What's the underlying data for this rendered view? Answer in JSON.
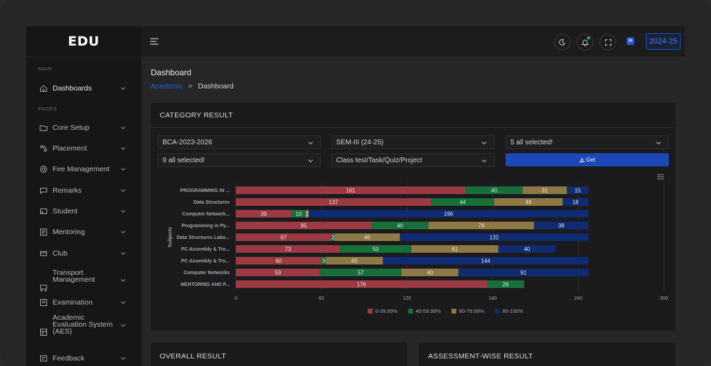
{
  "app": {
    "logo": "EDU",
    "academic_year": "2024-25",
    "profile_initials": "PI"
  },
  "sidebar": {
    "section_main": "MAIN",
    "section_pages": "PAGES",
    "items": [
      {
        "label": "Dashboards",
        "icon": "home-icon"
      },
      {
        "label": "Core Setup",
        "icon": "folder-icon"
      },
      {
        "label": "Placement",
        "icon": "placement-icon"
      },
      {
        "label": "Fee Management",
        "icon": "fee-icon"
      },
      {
        "label": "Remarks",
        "icon": "remarks-icon"
      },
      {
        "label": "Student",
        "icon": "student-icon"
      },
      {
        "label": "Mentoring",
        "icon": "mentoring-icon"
      },
      {
        "label": "Club",
        "icon": "club-icon"
      },
      {
        "label": "Transport Management",
        "icon": "transport-icon"
      },
      {
        "label": "Examination",
        "icon": "examination-icon"
      },
      {
        "label": "Academic Evaluation System (AES)",
        "icon": "aes-icon"
      },
      {
        "label": "Feedback",
        "icon": "feedback-icon"
      }
    ]
  },
  "page": {
    "title": "Dashboard",
    "breadcrumb": {
      "parent": "Academic",
      "separator": "»",
      "current": "Dashboard"
    }
  },
  "category_card": {
    "title": "CATEGORY RESULT",
    "filters": {
      "program": "BCA-2023-2026",
      "semester": "SEM-III (24-25)",
      "selection_a": "5 all selected!",
      "selection_b": "9 all selected!",
      "assessment_type": "Class test/Task/Quiz/Project"
    },
    "get_label": "Get"
  },
  "chart_data": {
    "type": "bar",
    "orientation": "horizontal",
    "stacked": true,
    "ylabel": "Subjects",
    "xlim": [
      0,
      300
    ],
    "xticks": [
      0,
      60,
      120,
      180,
      240,
      300
    ],
    "categories": [
      "PROGRAMMING IN ...",
      "Data Structures",
      "Computer Network...",
      "Programming in Py...",
      "Data Structures Labo...",
      "PC Assembly & Tro...",
      "PC Assembly & Tro...",
      "Computer Networks",
      "MENTORING AND P..."
    ],
    "series": [
      {
        "name": "0-39.99%",
        "color": "#9c3a44",
        "values": [
          161,
          137,
          39,
          95,
          67,
          73,
          60,
          59,
          176
        ]
      },
      {
        "name": "40-59.99%",
        "color": "#17703a",
        "values": [
          40,
          44,
          10,
          40,
          2,
          50,
          3,
          57,
          26
        ]
      },
      {
        "name": "60-79.99%",
        "color": "#8e7843",
        "values": [
          31,
          48,
          2,
          74,
          46,
          61,
          40,
          40,
          0
        ]
      },
      {
        "name": "80-100%",
        "color": "#0f2b73",
        "values": [
          15,
          18,
          196,
          38,
          132,
          40,
          144,
          91,
          0
        ]
      }
    ]
  },
  "bottom_cards": {
    "overall": "OVERALL RESULT",
    "assessment": "ASSESSMENT-WISE RESULT"
  }
}
